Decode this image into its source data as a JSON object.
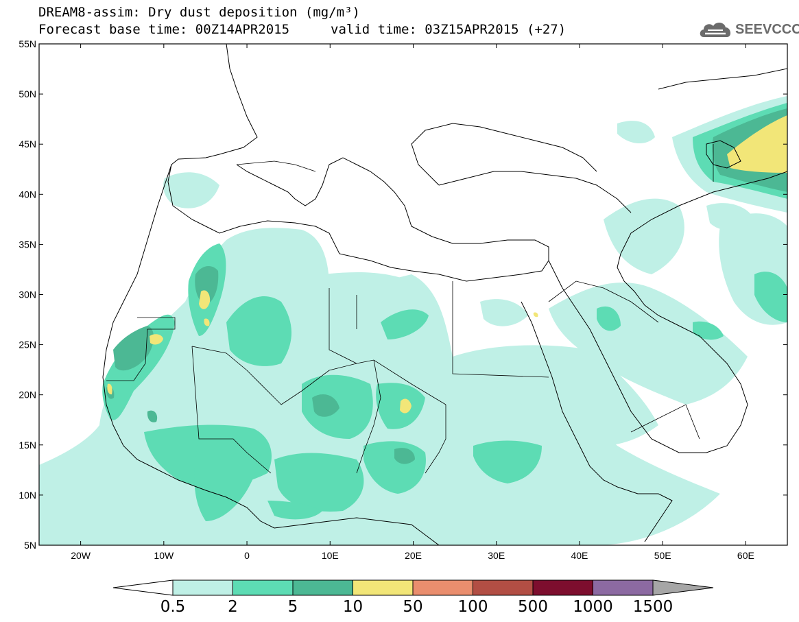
{
  "title": {
    "line1": "DREAM8-assim: Dry dust deposition (mg/m³)",
    "line2": "Forecast base time: 00Z14APR2015",
    "valid": "valid time: 03Z15APR2015 (+27)"
  },
  "logo": {
    "text": "SEEVCCC",
    "icon": "cloud-icon"
  },
  "axes": {
    "lat_labels": [
      "55N",
      "50N",
      "45N",
      "40N",
      "35N",
      "30N",
      "25N",
      "20N",
      "15N",
      "10N",
      "5N"
    ],
    "lat_values": [
      55,
      50,
      45,
      40,
      35,
      30,
      25,
      20,
      15,
      10,
      5
    ],
    "lon_labels": [
      "20W",
      "10W",
      "0",
      "10E",
      "20E",
      "30E",
      "40E",
      "50E",
      "60E"
    ],
    "lon_values": [
      -20,
      -10,
      0,
      10,
      20,
      30,
      40,
      50,
      60
    ],
    "lon_range": [
      -25,
      65
    ],
    "lat_range": [
      5,
      55
    ]
  },
  "colorbar": {
    "levels": [
      "0.5",
      "2",
      "5",
      "10",
      "50",
      "100",
      "500",
      "1000",
      "1500"
    ],
    "colors": [
      "#bff0e6",
      "#5ddcb4",
      "#4cb894",
      "#f2e678",
      "#ea8e6e",
      "#b24e44",
      "#7d0e2e",
      "#8c6aa2",
      "#a6a6a6"
    ],
    "under_color": "#ffffff",
    "over_color": "#a6a6a6"
  },
  "colors": {
    "coast": "#000000",
    "background": "#ffffff"
  }
}
